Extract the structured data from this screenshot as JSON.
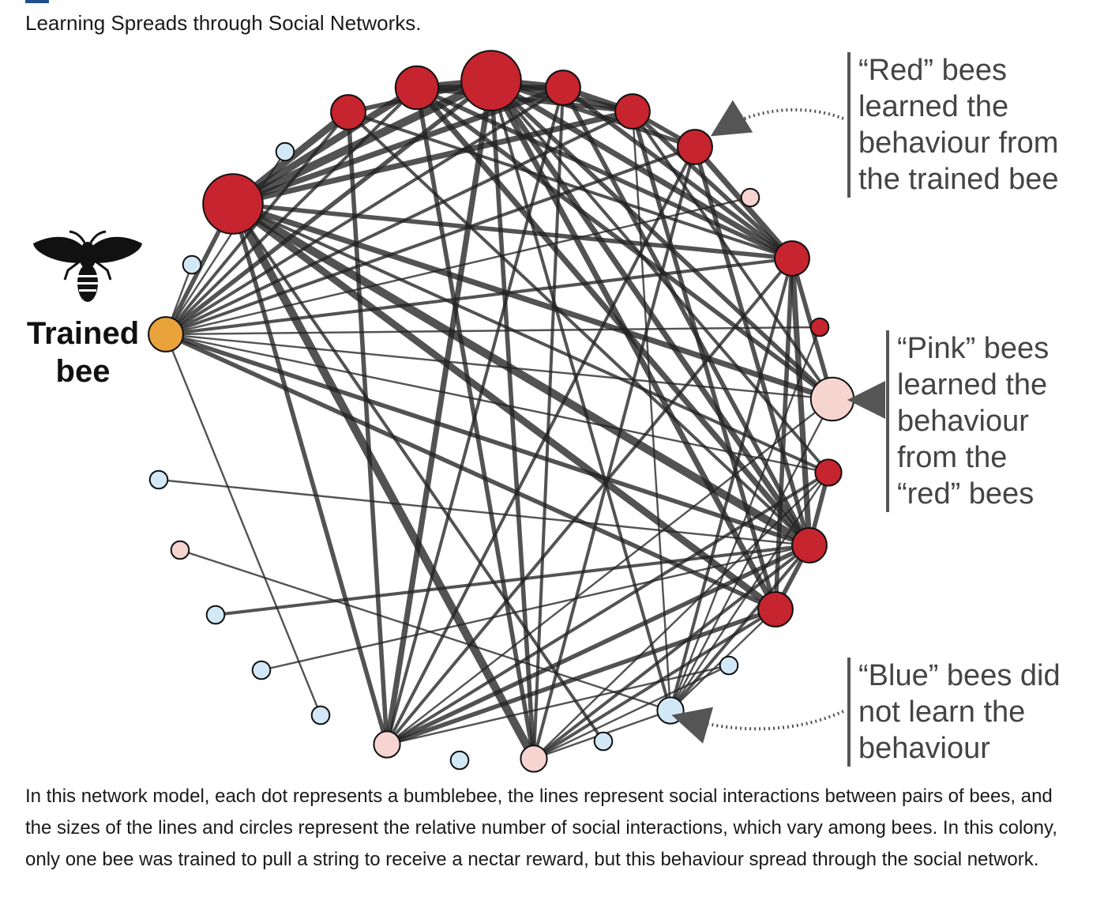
{
  "figure": {
    "title": "Learning Spreads through Social Networks."
  },
  "labels": {
    "trained_bee": "Trained bee",
    "red_bees": "“Red” bees learned the behaviour from the trained bee",
    "pink_bees": "“Pink” bees learned the behaviour from the “red” bees",
    "blue_bees": "“Blue” bees did not learn the behaviour"
  },
  "caption": "In this network model, each dot represents a bumblebee, the lines represent social interactions between pairs of bees, and the sizes of the lines and circles represent the relative number of social interactions, which vary among bees. In this colony, only one bee was trained to pull a string to receive a nectar reward, but this behaviour spread through the social network.",
  "colors": {
    "trained": "#e8a33a",
    "red": "#c6242e",
    "pink": "#f6d4d0",
    "blue": "#d3e8f7",
    "edge": "#222222",
    "annotation": "#555555"
  },
  "icons": [
    "bee-icon",
    "dotted-arrow-icon"
  ],
  "network": {
    "nodes": [
      {
        "id": "trained",
        "group": "trained",
        "weight": 3
      },
      {
        "id": "r1",
        "group": "red",
        "weight": 6
      },
      {
        "id": "r2",
        "group": "red",
        "weight": 3
      },
      {
        "id": "r3",
        "group": "red",
        "weight": 4
      },
      {
        "id": "r4",
        "group": "red",
        "weight": 6
      },
      {
        "id": "r5",
        "group": "red",
        "weight": 3
      },
      {
        "id": "r6",
        "group": "red",
        "weight": 3
      },
      {
        "id": "r7",
        "group": "red",
        "weight": 3
      },
      {
        "id": "r8",
        "group": "red",
        "weight": 3
      },
      {
        "id": "r9",
        "group": "red",
        "weight": 1
      },
      {
        "id": "r10",
        "group": "red",
        "weight": 2
      },
      {
        "id": "r11",
        "group": "red",
        "weight": 3
      },
      {
        "id": "r12",
        "group": "red",
        "weight": 3
      },
      {
        "id": "p1",
        "group": "pink",
        "weight": 1
      },
      {
        "id": "p2",
        "group": "pink",
        "weight": 4
      },
      {
        "id": "p3",
        "group": "pink",
        "weight": 1
      },
      {
        "id": "p4",
        "group": "pink",
        "weight": 2
      },
      {
        "id": "p5",
        "group": "pink",
        "weight": 2
      },
      {
        "id": "b1",
        "group": "blue",
        "weight": 1
      },
      {
        "id": "b2",
        "group": "blue",
        "weight": 1
      },
      {
        "id": "b3",
        "group": "blue",
        "weight": 1
      },
      {
        "id": "b4",
        "group": "blue",
        "weight": 1
      },
      {
        "id": "b5",
        "group": "blue",
        "weight": 1
      },
      {
        "id": "b6",
        "group": "blue",
        "weight": 1
      },
      {
        "id": "b7",
        "group": "blue",
        "weight": 1
      },
      {
        "id": "b8",
        "group": "blue",
        "weight": 1
      },
      {
        "id": "b9",
        "group": "blue",
        "weight": 2
      },
      {
        "id": "b10",
        "group": "blue",
        "weight": 1
      }
    ],
    "edges": [
      [
        "trained",
        "r1",
        3
      ],
      [
        "trained",
        "r2",
        2
      ],
      [
        "trained",
        "r3",
        2
      ],
      [
        "trained",
        "r4",
        3
      ],
      [
        "trained",
        "r5",
        2
      ],
      [
        "trained",
        "r6",
        2
      ],
      [
        "trained",
        "r7",
        2
      ],
      [
        "trained",
        "r8",
        2
      ],
      [
        "trained",
        "r9",
        1
      ],
      [
        "trained",
        "r10",
        1
      ],
      [
        "trained",
        "r11",
        3
      ],
      [
        "trained",
        "r12",
        3
      ],
      [
        "trained",
        "p2",
        1
      ],
      [
        "trained",
        "b2",
        1
      ],
      [
        "trained",
        "b1",
        1
      ],
      [
        "trained",
        "p1",
        1
      ],
      [
        "trained",
        "b6",
        1
      ],
      [
        "r1",
        "r2",
        5
      ],
      [
        "r1",
        "r3",
        5
      ],
      [
        "r1",
        "r4",
        6
      ],
      [
        "r1",
        "r5",
        4
      ],
      [
        "r1",
        "r6",
        4
      ],
      [
        "r1",
        "r8",
        3
      ],
      [
        "r1",
        "r11",
        6
      ],
      [
        "r1",
        "r12",
        5
      ],
      [
        "r1",
        "p2",
        4
      ],
      [
        "r1",
        "p4",
        3
      ],
      [
        "r1",
        "p5",
        6
      ],
      [
        "r1",
        "b8",
        2
      ],
      [
        "r1",
        "r10",
        2
      ],
      [
        "r2",
        "r4",
        3
      ],
      [
        "r2",
        "r8",
        2
      ],
      [
        "r2",
        "p4",
        3
      ],
      [
        "r2",
        "r11",
        2
      ],
      [
        "r3",
        "r4",
        5
      ],
      [
        "r3",
        "r5",
        4
      ],
      [
        "r3",
        "r6",
        3
      ],
      [
        "r3",
        "r8",
        3
      ],
      [
        "r3",
        "r11",
        4
      ],
      [
        "r3",
        "p5",
        3
      ],
      [
        "r3",
        "p2",
        3
      ],
      [
        "r4",
        "r5",
        5
      ],
      [
        "r4",
        "r6",
        4
      ],
      [
        "r4",
        "r7",
        3
      ],
      [
        "r4",
        "r8",
        4
      ],
      [
        "r4",
        "r11",
        4
      ],
      [
        "r4",
        "r12",
        4
      ],
      [
        "r4",
        "p2",
        3
      ],
      [
        "r4",
        "p4",
        4
      ],
      [
        "r4",
        "p5",
        3
      ],
      [
        "r4",
        "b9",
        2
      ],
      [
        "r4",
        "r10",
        2
      ],
      [
        "r5",
        "r6",
        4
      ],
      [
        "r5",
        "r8",
        3
      ],
      [
        "r5",
        "r11",
        3
      ],
      [
        "r5",
        "p4",
        2
      ],
      [
        "r5",
        "p5",
        2
      ],
      [
        "r6",
        "r7",
        3
      ],
      [
        "r6",
        "r8",
        3
      ],
      [
        "r6",
        "r12",
        3
      ],
      [
        "r6",
        "p2",
        2
      ],
      [
        "r6",
        "b9",
        1
      ],
      [
        "r7",
        "r8",
        4
      ],
      [
        "r7",
        "r11",
        3
      ],
      [
        "r7",
        "p4",
        2
      ],
      [
        "r7",
        "p5",
        2
      ],
      [
        "r8",
        "r11",
        4
      ],
      [
        "r8",
        "r12",
        3
      ],
      [
        "r8",
        "p2",
        3
      ],
      [
        "r8",
        "p4",
        2
      ],
      [
        "r8",
        "b9",
        2
      ],
      [
        "r10",
        "r11",
        3
      ],
      [
        "r10",
        "p5",
        1
      ],
      [
        "r10",
        "p4",
        2
      ],
      [
        "r10",
        "b9",
        1
      ],
      [
        "r11",
        "r12",
        3
      ],
      [
        "r11",
        "p5",
        2
      ],
      [
        "r11",
        "p4",
        3
      ],
      [
        "r11",
        "b9",
        2
      ],
      [
        "r11",
        "b4",
        2
      ],
      [
        "r11",
        "b5",
        1
      ],
      [
        "r11",
        "b3",
        1
      ],
      [
        "r12",
        "p4",
        3
      ],
      [
        "r12",
        "p5",
        2
      ],
      [
        "r12",
        "b9",
        1
      ],
      [
        "p2",
        "p4",
        1
      ],
      [
        "p2",
        "b9",
        1
      ],
      [
        "p5",
        "b9",
        1
      ],
      [
        "p4",
        "b10",
        1
      ],
      [
        "p5",
        "b10",
        1
      ],
      [
        "r9",
        "b9",
        1
      ],
      [
        "p3",
        "b9",
        1
      ]
    ]
  }
}
